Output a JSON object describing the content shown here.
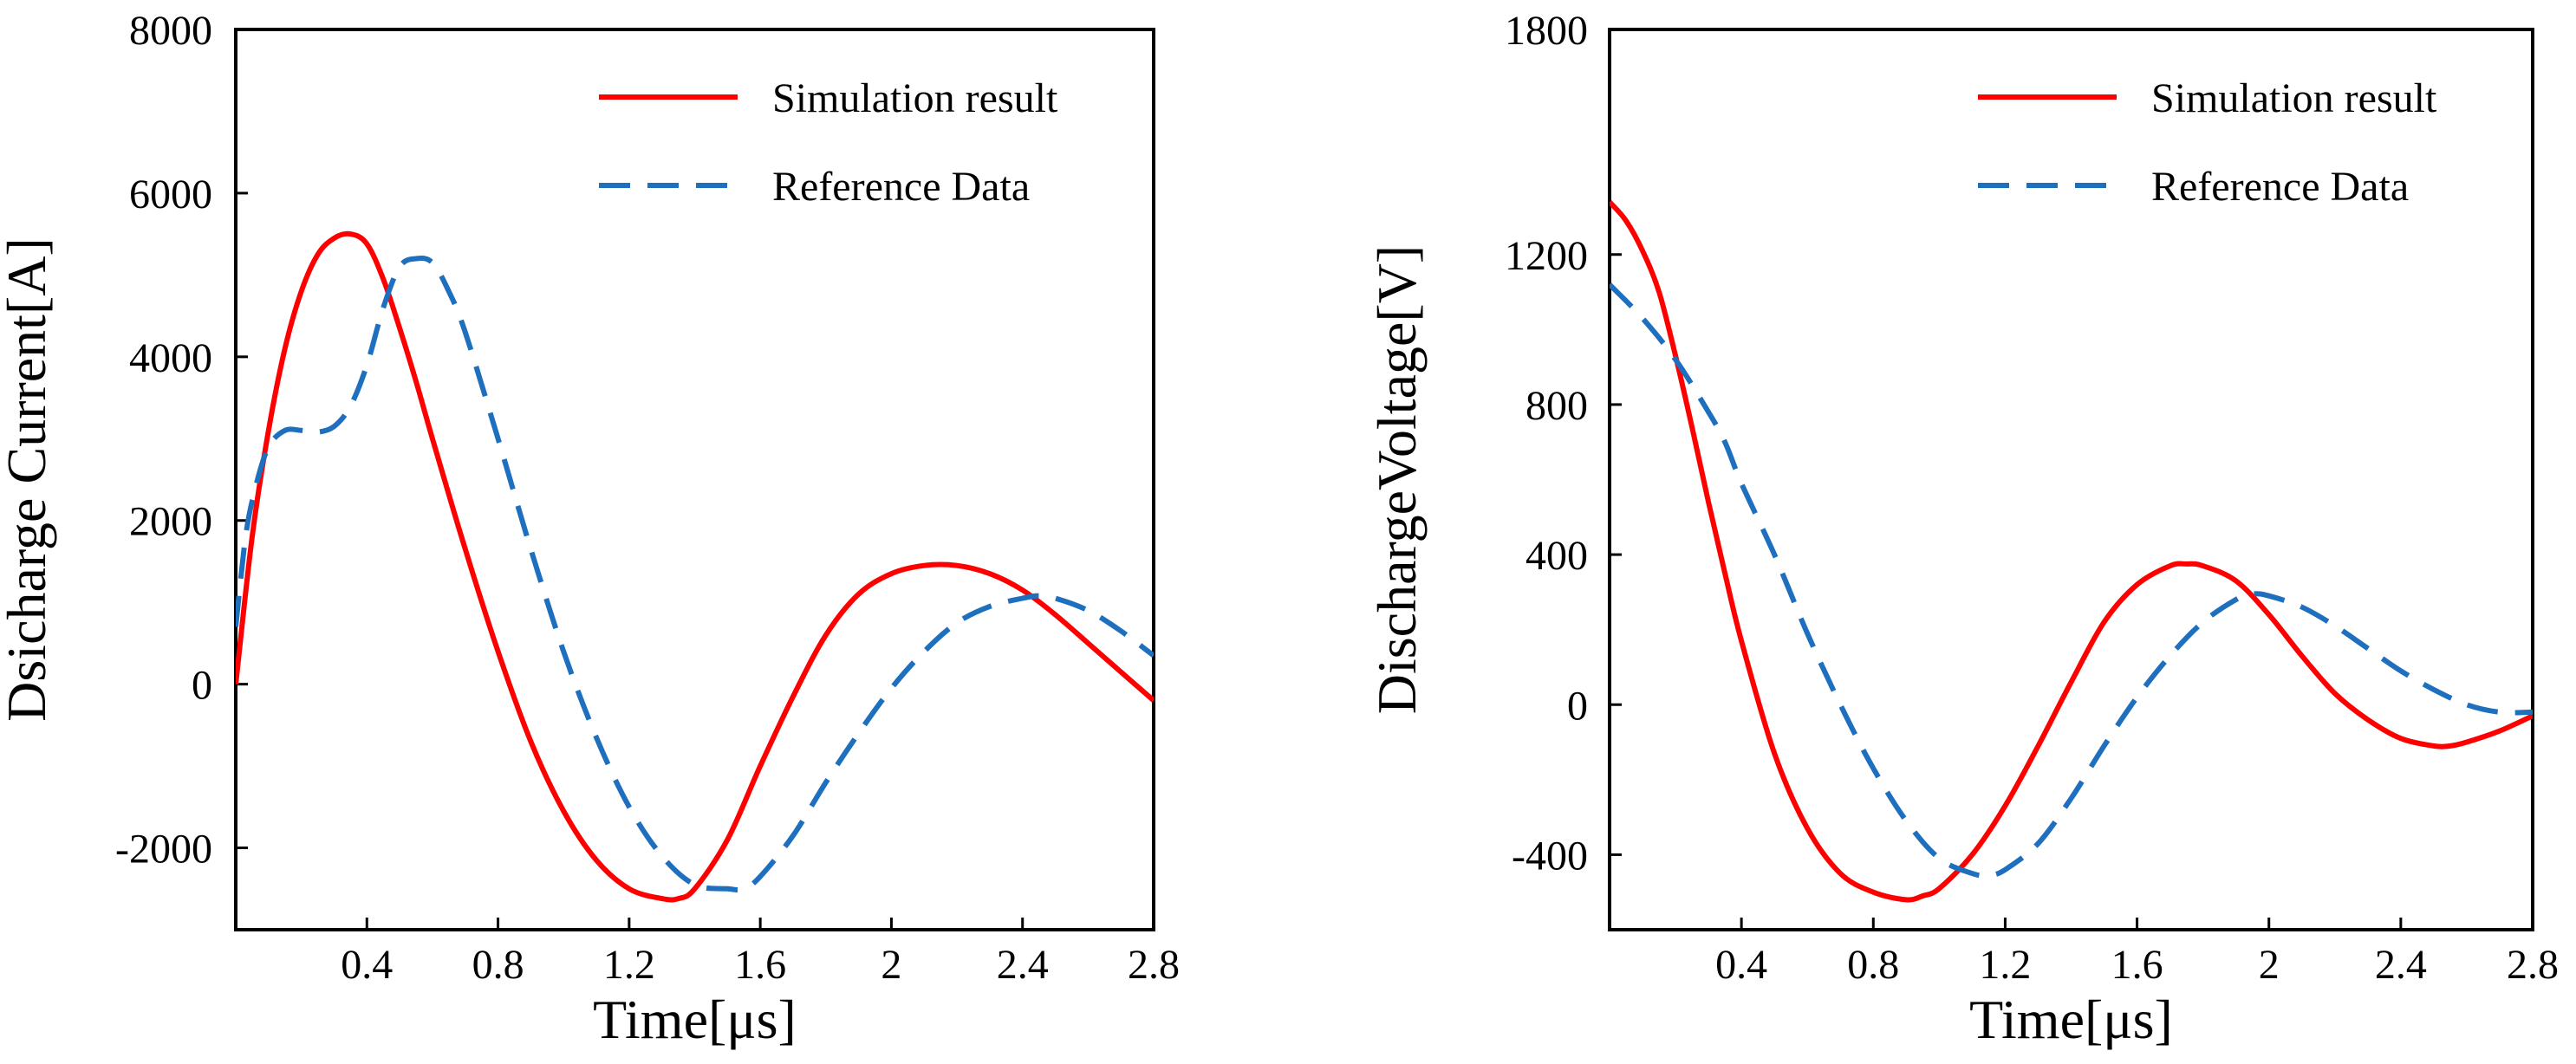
{
  "colors": {
    "simulation": "#ff0000",
    "reference": "#1f6fbf"
  },
  "chart_data": [
    {
      "type": "line",
      "title": "",
      "xlabel": "Time[μs]",
      "ylabel": "Dsicharge Current[A]",
      "xlim": [
        0,
        2.8
      ],
      "ylim": [
        -3000,
        8000
      ],
      "xticks": [
        0.4,
        0.8,
        1.2,
        1.6,
        2,
        2.4,
        2.8
      ],
      "xtick_labels": [
        "0.4",
        "0.8",
        "1.2",
        "1.6",
        "2",
        "2.4",
        "2.8"
      ],
      "yticks": [
        -2000,
        0,
        2000,
        4000,
        6000,
        8000
      ],
      "ytick_labels": [
        "-2000",
        "0",
        "2000",
        "4000",
        "6000",
        "8000"
      ],
      "grid": false,
      "legend": "top-right",
      "series": [
        {
          "name": "Simulation result",
          "style": "solid",
          "x": [
            0,
            0.05,
            0.1,
            0.15,
            0.2,
            0.25,
            0.3,
            0.35,
            0.4,
            0.45,
            0.5,
            0.55,
            0.6,
            0.7,
            0.8,
            0.9,
            1.0,
            1.1,
            1.2,
            1.3,
            1.35,
            1.4,
            1.5,
            1.6,
            1.7,
            1.8,
            1.9,
            2.0,
            2.1,
            2.2,
            2.3,
            2.4,
            2.5,
            2.6,
            2.7,
            2.8
          ],
          "values": [
            0,
            1800,
            3100,
            4100,
            4800,
            5250,
            5450,
            5500,
            5380,
            4950,
            4350,
            3700,
            3000,
            1650,
            400,
            -700,
            -1550,
            -2150,
            -2500,
            -2620,
            -2620,
            -2500,
            -1900,
            -1000,
            -150,
            600,
            1100,
            1350,
            1450,
            1450,
            1350,
            1150,
            850,
            500,
            150,
            -200
          ]
        },
        {
          "name": "Reference Data",
          "style": "dashed",
          "x": [
            0,
            0.03,
            0.06,
            0.1,
            0.15,
            0.2,
            0.25,
            0.3,
            0.35,
            0.4,
            0.45,
            0.5,
            0.55,
            0.6,
            0.65,
            0.7,
            0.8,
            0.9,
            1.0,
            1.1,
            1.2,
            1.3,
            1.4,
            1.5,
            1.55,
            1.6,
            1.7,
            1.8,
            1.9,
            2.0,
            2.1,
            2.2,
            2.3,
            2.4,
            2.45,
            2.5,
            2.6,
            2.7,
            2.8
          ],
          "values": [
            700,
            1800,
            2400,
            2900,
            3100,
            3100,
            3080,
            3150,
            3400,
            3900,
            4600,
            5100,
            5200,
            5150,
            4800,
            4300,
            3000,
            1650,
            400,
            -650,
            -1500,
            -2100,
            -2450,
            -2500,
            -2500,
            -2350,
            -1850,
            -1200,
            -600,
            -50,
            400,
            750,
            950,
            1050,
            1080,
            1050,
            900,
            650,
            350
          ]
        }
      ]
    },
    {
      "type": "line",
      "title": "",
      "xlabel": "Time[μs]",
      "ylabel": "DischargeVoltage[V]",
      "xlim": [
        0,
        2.8
      ],
      "ylim": [
        -600,
        1800
      ],
      "xticks": [
        0.4,
        0.8,
        1.2,
        1.6,
        2,
        2.4,
        2.8
      ],
      "xtick_labels": [
        "0.4",
        "0.8",
        "1.2",
        "1.6",
        "2",
        "2.4",
        "2.8"
      ],
      "yticks": [
        -400,
        0,
        400,
        800,
        1200,
        1800
      ],
      "ytick_labels": [
        "-400",
        "0",
        "400",
        "800",
        "1200",
        "1800"
      ],
      "grid": false,
      "legend": "top-right",
      "series": [
        {
          "name": "Simulation result",
          "style": "solid",
          "x": [
            0,
            0.05,
            0.1,
            0.15,
            0.2,
            0.25,
            0.3,
            0.35,
            0.4,
            0.5,
            0.6,
            0.7,
            0.8,
            0.9,
            0.95,
            1.0,
            1.1,
            1.2,
            1.3,
            1.4,
            1.5,
            1.6,
            1.7,
            1.75,
            1.8,
            1.9,
            2.0,
            2.1,
            2.2,
            2.3,
            2.4,
            2.5,
            2.55,
            2.6,
            2.7,
            2.8
          ],
          "values": [
            1340,
            1290,
            1210,
            1100,
            930,
            740,
            540,
            350,
            170,
            -130,
            -330,
            -450,
            -500,
            -520,
            -510,
            -490,
            -400,
            -270,
            -110,
            60,
            220,
            320,
            370,
            375,
            370,
            330,
            240,
            130,
            30,
            -40,
            -90,
            -110,
            -110,
            -100,
            -70,
            -30
          ]
        },
        {
          "name": "Reference Data",
          "style": "dashed",
          "x": [
            0,
            0.1,
            0.2,
            0.3,
            0.35,
            0.4,
            0.5,
            0.6,
            0.7,
            0.8,
            0.9,
            1.0,
            1.1,
            1.15,
            1.2,
            1.3,
            1.4,
            1.5,
            1.6,
            1.7,
            1.8,
            1.9,
            1.95,
            2.0,
            2.1,
            2.2,
            2.3,
            2.4,
            2.5,
            2.6,
            2.7,
            2.8
          ],
          "values": [
            1120,
            1030,
            920,
            780,
            700,
            590,
            400,
            190,
            0,
            -170,
            -310,
            -410,
            -450,
            -455,
            -440,
            -370,
            -250,
            -110,
            20,
            130,
            220,
            280,
            295,
            290,
            260,
            210,
            150,
            90,
            40,
            0,
            -20,
            -20
          ]
        }
      ]
    }
  ]
}
